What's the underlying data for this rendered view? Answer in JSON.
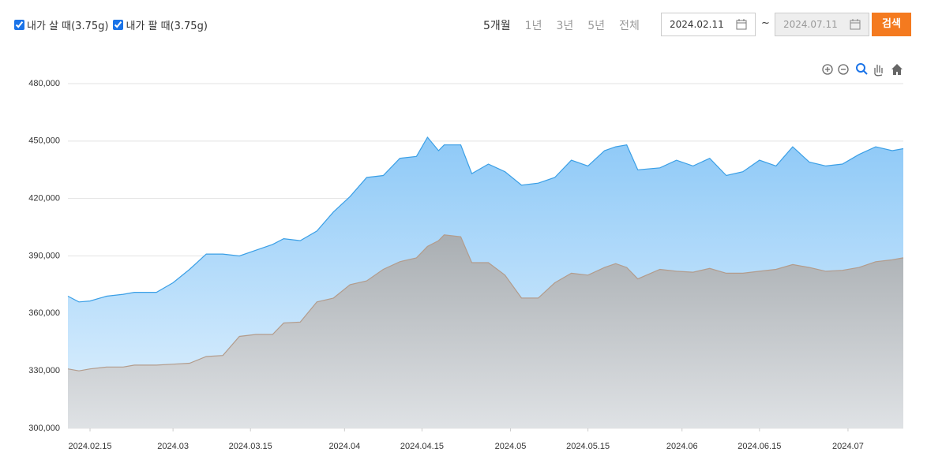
{
  "controls": {
    "periods": [
      "5개월",
      "1년",
      "3년",
      "5년",
      "전체"
    ],
    "start_date": "2024.02.11",
    "separator": "~",
    "end_date": "2024.07.11",
    "search": "검색"
  },
  "chart_data": {
    "type": "area",
    "x": [
      "2024.02.11",
      "2024.02.13",
      "2024.02.15",
      "2024.02.18",
      "2024.02.21",
      "2024.02.23",
      "2024.02.27",
      "2024.03.01",
      "2024.03.04",
      "2024.03.07",
      "2024.03.10",
      "2024.03.13",
      "2024.03.16",
      "2024.03.19",
      "2024.03.21",
      "2024.03.24",
      "2024.03.27",
      "2024.03.30",
      "2024.04.02",
      "2024.04.05",
      "2024.04.08",
      "2024.04.11",
      "2024.04.14",
      "2024.04.16",
      "2024.04.18",
      "2024.04.19",
      "2024.04.22",
      "2024.04.24",
      "2024.04.27",
      "2024.04.30",
      "2024.05.03",
      "2024.05.06",
      "2024.05.09",
      "2024.05.12",
      "2024.05.15",
      "2024.05.18",
      "2024.05.20",
      "2024.05.22",
      "2024.05.24",
      "2024.05.28",
      "2024.05.31",
      "2024.06.03",
      "2024.06.06",
      "2024.06.09",
      "2024.06.12",
      "2024.06.15",
      "2024.06.18",
      "2024.06.21",
      "2024.06.24",
      "2024.06.27",
      "2024.06.30",
      "2024.07.03",
      "2024.07.06",
      "2024.07.09",
      "2024.07.11"
    ],
    "series": [
      {
        "name": "내가 살 때(3.75g)",
        "color": "#3a9fe6",
        "fill": "#a9d6fb",
        "values": [
          369000,
          366000,
          366500,
          369000,
          370000,
          371000,
          371000,
          376000,
          383000,
          391000,
          391000,
          390000,
          393000,
          396000,
          399000,
          398000,
          403000,
          413000,
          421000,
          431000,
          432000,
          441000,
          442000,
          452000,
          445000,
          448000,
          448000,
          433000,
          438000,
          434000,
          427000,
          428000,
          431000,
          440000,
          437000,
          445000,
          447000,
          448000,
          435000,
          436000,
          440000,
          437000,
          441000,
          432000,
          434000,
          440000,
          437000,
          447000,
          439000,
          437000,
          438000,
          443000,
          447000,
          445000,
          446000
        ]
      },
      {
        "name": "내가 팔 때(3.75g)",
        "color": "#b39c8c",
        "fill": "#bcc2c8",
        "values": [
          331000,
          330000,
          331000,
          332000,
          332000,
          333000,
          333000,
          333500,
          334000,
          337500,
          338000,
          348000,
          349000,
          349000,
          355000,
          355500,
          366000,
          368000,
          375000,
          377000,
          383000,
          387000,
          389000,
          395000,
          398000,
          401000,
          400000,
          386500,
          386500,
          380000,
          368000,
          368000,
          376000,
          381000,
          380000,
          384000,
          386000,
          384000,
          378000,
          383000,
          382000,
          381500,
          383500,
          381000,
          381000,
          382000,
          383000,
          385500,
          384000,
          382000,
          382500,
          384000,
          387000,
          388000,
          389000
        ]
      }
    ],
    "xlim": [
      "2024.02.11",
      "2024.07.11"
    ],
    "xticks": [
      "2024.02.15",
      {
        "value": "2024.03.01",
        "label": "2024.03"
      },
      "2024.03.15",
      {
        "value": "2024.04.01",
        "label": "2024.04"
      },
      "2024.04.15",
      {
        "value": "2024.05.01",
        "label": "2024.05"
      },
      "2024.05.15",
      {
        "value": "2024.06.01",
        "label": "2024.06"
      },
      "2024.06.15",
      {
        "value": "2024.07.01",
        "label": "2024.07"
      }
    ],
    "ylim": [
      300000,
      480000
    ],
    "yticks": [
      {
        "value": 300000,
        "label": "300,000"
      },
      {
        "value": 330000,
        "label": "330,000"
      },
      {
        "value": 360000,
        "label": "360,000"
      },
      {
        "value": 390000,
        "label": "390,000"
      },
      {
        "value": 420000,
        "label": "420,000"
      },
      {
        "value": 450000,
        "label": "450,000"
      },
      {
        "value": 480000,
        "label": "480,000"
      }
    ],
    "grid": true
  }
}
